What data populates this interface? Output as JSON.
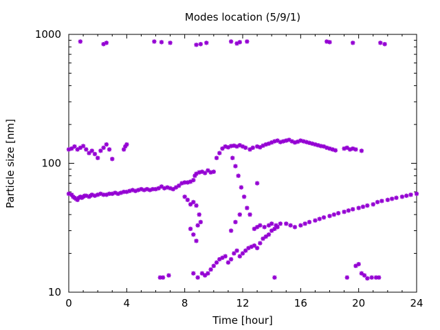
{
  "chart_data": {
    "type": "scatter",
    "title": "Modes location (5/9/1)",
    "xlabel": "Time [hour]",
    "ylabel": "Particle size [nm]",
    "xlim": [
      0,
      24
    ],
    "ylim": [
      10,
      1000
    ],
    "yscale": "log",
    "grid": false,
    "marker": "asterisk",
    "color": "#9400d3",
    "xticks": [
      0,
      4,
      8,
      12,
      16,
      20,
      24
    ],
    "xtick_labels": [
      "0",
      "4",
      "8",
      "12",
      "16",
      "20",
      "24"
    ],
    "yticks": [
      10,
      100,
      1000
    ],
    "ytick_labels": [
      "10",
      "100",
      "1000"
    ],
    "series": [
      {
        "name": "",
        "points": [
          [
            0.0,
            58
          ],
          [
            0.2,
            57
          ],
          [
            0.3,
            55
          ],
          [
            0.4,
            54
          ],
          [
            0.5,
            53
          ],
          [
            0.6,
            52
          ],
          [
            0.7,
            54
          ],
          [
            0.8,
            55
          ],
          [
            0.9,
            54
          ],
          [
            1.0,
            55
          ],
          [
            1.1,
            56
          ],
          [
            1.2,
            56
          ],
          [
            1.4,
            55
          ],
          [
            1.5,
            56
          ],
          [
            1.6,
            57
          ],
          [
            1.8,
            56
          ],
          [
            2.0,
            57
          ],
          [
            2.2,
            58
          ],
          [
            2.4,
            57
          ],
          [
            2.6,
            57
          ],
          [
            2.8,
            58
          ],
          [
            3.0,
            58
          ],
          [
            3.2,
            59
          ],
          [
            3.4,
            58
          ],
          [
            3.6,
            59
          ],
          [
            3.8,
            60
          ],
          [
            4.0,
            60
          ],
          [
            4.2,
            61
          ],
          [
            4.4,
            62
          ],
          [
            4.6,
            61
          ],
          [
            4.8,
            62
          ],
          [
            5.0,
            63
          ],
          [
            5.2,
            62
          ],
          [
            5.4,
            63
          ],
          [
            5.6,
            62
          ],
          [
            5.8,
            63
          ],
          [
            6.0,
            63
          ],
          [
            6.2,
            64
          ],
          [
            6.4,
            66
          ],
          [
            6.6,
            64
          ],
          [
            6.8,
            65
          ],
          [
            7.0,
            64
          ],
          [
            7.2,
            63
          ],
          [
            7.4,
            65
          ],
          [
            7.6,
            67
          ],
          [
            7.8,
            70
          ],
          [
            8.0,
            71
          ],
          [
            8.2,
            71
          ],
          [
            8.4,
            72
          ],
          [
            8.6,
            74
          ],
          [
            8.7,
            80
          ],
          [
            8.8,
            83
          ],
          [
            9.0,
            85
          ],
          [
            9.2,
            86
          ],
          [
            9.4,
            84
          ],
          [
            9.6,
            88
          ],
          [
            9.8,
            85
          ],
          [
            10.0,
            86
          ],
          [
            10.2,
            110
          ],
          [
            10.4,
            120
          ],
          [
            10.6,
            130
          ],
          [
            10.8,
            135
          ],
          [
            11.0,
            133
          ],
          [
            11.2,
            136
          ],
          [
            11.4,
            137
          ],
          [
            11.6,
            135
          ],
          [
            11.8,
            138
          ],
          [
            12.0,
            135
          ],
          [
            12.2,
            132
          ],
          [
            12.5,
            128
          ],
          [
            12.7,
            132
          ],
          [
            13.0,
            135
          ],
          [
            13.2,
            133
          ],
          [
            13.4,
            137
          ],
          [
            13.6,
            140
          ],
          [
            13.8,
            142
          ],
          [
            14.0,
            145
          ],
          [
            14.2,
            148
          ],
          [
            14.4,
            150
          ],
          [
            14.6,
            146
          ],
          [
            14.8,
            148
          ],
          [
            15.0,
            150
          ],
          [
            15.2,
            152
          ],
          [
            15.4,
            148
          ],
          [
            15.6,
            145
          ],
          [
            15.8,
            147
          ],
          [
            16.0,
            150
          ],
          [
            16.2,
            148
          ],
          [
            16.4,
            146
          ],
          [
            16.6,
            144
          ],
          [
            16.8,
            142
          ],
          [
            17.0,
            140
          ],
          [
            17.2,
            138
          ],
          [
            17.4,
            136
          ],
          [
            17.6,
            135
          ],
          [
            17.8,
            132
          ],
          [
            18.0,
            130
          ],
          [
            18.2,
            128
          ],
          [
            18.4,
            126
          ],
          [
            19.0,
            130
          ],
          [
            19.2,
            132
          ],
          [
            19.4,
            128
          ],
          [
            19.6,
            130
          ],
          [
            19.8,
            128
          ],
          [
            20.2,
            125
          ],
          [
            0.0,
            128
          ],
          [
            0.2,
            130
          ],
          [
            0.4,
            135
          ],
          [
            0.6,
            128
          ],
          [
            0.8,
            132
          ],
          [
            1.0,
            136
          ],
          [
            1.2,
            128
          ],
          [
            1.4,
            120
          ],
          [
            1.6,
            125
          ],
          [
            1.8,
            118
          ],
          [
            2.0,
            110
          ],
          [
            2.2,
            125
          ],
          [
            2.4,
            132
          ],
          [
            2.6,
            140
          ],
          [
            2.8,
            128
          ],
          [
            3.0,
            108
          ],
          [
            3.8,
            128
          ],
          [
            3.9,
            135
          ],
          [
            4.0,
            140
          ],
          [
            8.0,
            55
          ],
          [
            8.2,
            52
          ],
          [
            8.4,
            48
          ],
          [
            8.6,
            50
          ],
          [
            8.8,
            47
          ],
          [
            9.0,
            40
          ],
          [
            9.1,
            35
          ],
          [
            8.9,
            33
          ],
          [
            8.4,
            31
          ],
          [
            8.6,
            28
          ],
          [
            8.8,
            25
          ],
          [
            8.6,
            14
          ],
          [
            8.9,
            13
          ],
          [
            9.2,
            14
          ],
          [
            9.4,
            13.5
          ],
          [
            9.6,
            14
          ],
          [
            9.8,
            15
          ],
          [
            10.0,
            16
          ],
          [
            10.2,
            17
          ],
          [
            10.4,
            18
          ],
          [
            10.6,
            18.5
          ],
          [
            10.8,
            19
          ],
          [
            11.0,
            17
          ],
          [
            11.2,
            18
          ],
          [
            11.4,
            20
          ],
          [
            11.6,
            21
          ],
          [
            11.8,
            19
          ],
          [
            12.0,
            20
          ],
          [
            12.2,
            21
          ],
          [
            12.4,
            22
          ],
          [
            12.6,
            22.5
          ],
          [
            12.8,
            23
          ],
          [
            13.0,
            22
          ],
          [
            13.2,
            24
          ],
          [
            13.4,
            26
          ],
          [
            13.6,
            27
          ],
          [
            13.8,
            28
          ],
          [
            14.0,
            30
          ],
          [
            14.2,
            31
          ],
          [
            14.4,
            32
          ],
          [
            12.8,
            31
          ],
          [
            13.0,
            32
          ],
          [
            13.2,
            33
          ],
          [
            13.5,
            32
          ],
          [
            13.8,
            33
          ],
          [
            14.0,
            34
          ],
          [
            14.3,
            33
          ],
          [
            14.6,
            34
          ],
          [
            15.0,
            34
          ],
          [
            15.3,
            33
          ],
          [
            15.6,
            32
          ],
          [
            16.0,
            33
          ],
          [
            16.3,
            34
          ],
          [
            16.6,
            35
          ],
          [
            17.0,
            36
          ],
          [
            17.3,
            37
          ],
          [
            17.6,
            38
          ],
          [
            18.0,
            39
          ],
          [
            18.3,
            40
          ],
          [
            18.6,
            41
          ],
          [
            19.0,
            42
          ],
          [
            19.3,
            43
          ],
          [
            19.6,
            44
          ],
          [
            20.0,
            45
          ],
          [
            20.3,
            46
          ],
          [
            20.6,
            47
          ],
          [
            21.0,
            48
          ],
          [
            21.3,
            50
          ],
          [
            21.6,
            51
          ],
          [
            22.0,
            52
          ],
          [
            22.3,
            53
          ],
          [
            22.6,
            54
          ],
          [
            23.0,
            55
          ],
          [
            23.3,
            56
          ],
          [
            23.6,
            57
          ],
          [
            24.0,
            58
          ],
          [
            11.3,
            110
          ],
          [
            11.5,
            95
          ],
          [
            11.7,
            80
          ],
          [
            11.9,
            65
          ],
          [
            12.1,
            55
          ],
          [
            12.3,
            45
          ],
          [
            11.8,
            40
          ],
          [
            11.5,
            35
          ],
          [
            11.2,
            30
          ],
          [
            12.5,
            40
          ],
          [
            13.0,
            70
          ],
          [
            0.8,
            880
          ],
          [
            2.4,
            840
          ],
          [
            2.6,
            860
          ],
          [
            5.9,
            880
          ],
          [
            6.4,
            870
          ],
          [
            7.0,
            860
          ],
          [
            8.8,
            830
          ],
          [
            9.1,
            840
          ],
          [
            9.5,
            860
          ],
          [
            11.2,
            880
          ],
          [
            11.6,
            850
          ],
          [
            11.8,
            870
          ],
          [
            12.3,
            880
          ],
          [
            17.8,
            880
          ],
          [
            18.0,
            870
          ],
          [
            19.6,
            860
          ],
          [
            21.5,
            860
          ],
          [
            21.8,
            840
          ],
          [
            6.3,
            13
          ],
          [
            6.5,
            13
          ],
          [
            6.9,
            13.5
          ],
          [
            14.2,
            13
          ],
          [
            19.2,
            13
          ],
          [
            19.8,
            16
          ],
          [
            20.0,
            16.5
          ],
          [
            20.2,
            14
          ],
          [
            20.4,
            13.5
          ],
          [
            20.6,
            12.8
          ],
          [
            20.9,
            13
          ],
          [
            21.2,
            13
          ],
          [
            21.4,
            13
          ]
        ]
      }
    ]
  }
}
